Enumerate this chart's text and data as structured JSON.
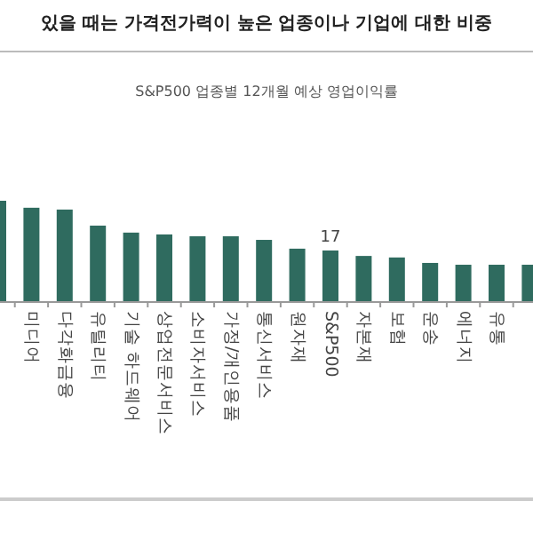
{
  "chart_data": {
    "type": "bar",
    "title": "있을 때는 가격전가력이 높은 업종이나 기업에 대한 비중",
    "subtitle": "S&P500 업종별 12개월 예상 영업이익률",
    "categories": [
      null,
      "미디어",
      "다각화금융",
      "유틸리티",
      "기술 하드웨어",
      "상업전문서비스",
      "소비자서비스",
      "가정/개인용품",
      "통신서비스",
      "원자재",
      "S&P500",
      "자본재",
      "보험",
      "운송",
      "에너지",
      "유통",
      null
    ],
    "values": [
      33.4,
      31.1,
      30.5,
      25.2,
      22.9,
      22.3,
      21.7,
      21.7,
      20.5,
      17.6,
      17,
      15.2,
      14.7,
      12.9,
      12.3,
      12.3,
      12.3
    ],
    "value_labels": [
      null,
      null,
      null,
      null,
      null,
      null,
      null,
      null,
      null,
      null,
      "17",
      null,
      null,
      null,
      null,
      null,
      null
    ],
    "color": "#2f6b5f"
  }
}
